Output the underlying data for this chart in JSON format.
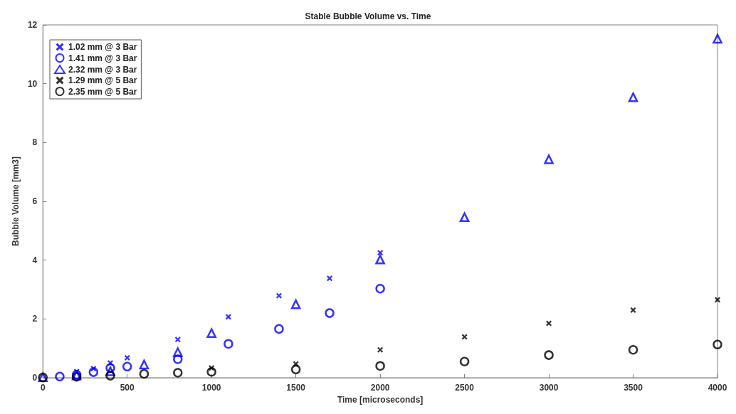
{
  "chart_data": {
    "type": "scatter",
    "title": "Stable Bubble Volume vs. Time",
    "xlabel": "Time [microseconds]",
    "ylabel": "Bubble Volume [mm3]",
    "xlim": [
      0,
      4000
    ],
    "xticks": [
      0,
      500,
      1000,
      1500,
      2000,
      2500,
      3000,
      3500,
      4000
    ],
    "ylim": [
      0,
      12
    ],
    "yticks": [
      0,
      2,
      4,
      6,
      8,
      10,
      12
    ],
    "grid": false,
    "legend": "top left",
    "series": [
      {
        "name": "1.02 mm @ 3 Bar",
        "color": "#0000ff",
        "marker": "cross",
        "x": [
          200,
          300,
          400,
          500,
          800,
          1100,
          1400,
          1700,
          2000
        ],
        "values": [
          0.21,
          0.31,
          0.5,
          0.68,
          1.3,
          2.07,
          2.79,
          3.38,
          4.25
        ]
      },
      {
        "name": "1.41 mm @ 3 Bar",
        "color": "#0000ff",
        "marker": "circle",
        "x": [
          100,
          200,
          300,
          400,
          500,
          800,
          1100,
          1400,
          1700,
          2000
        ],
        "values": [
          0.04,
          0.1,
          0.19,
          0.33,
          0.38,
          0.63,
          1.15,
          1.66,
          2.2,
          3.03
        ]
      },
      {
        "name": "2.32 mm @ 3 Bar",
        "color": "#0000ff",
        "marker": "triangle",
        "x": [
          0,
          200,
          400,
          600,
          800,
          1000,
          1500,
          2000,
          2500,
          3000,
          3500,
          4000
        ],
        "values": [
          0.02,
          0.08,
          0.22,
          0.45,
          0.87,
          1.52,
          2.5,
          4.02,
          5.46,
          7.43,
          9.54,
          11.53
        ]
      },
      {
        "name": "1.29 mm @ 5 Bar",
        "color": "#000000",
        "marker": "cross",
        "x": [
          1000,
          1500,
          2000,
          2500,
          3000,
          3500,
          4000
        ],
        "values": [
          0.33,
          0.47,
          0.95,
          1.39,
          1.85,
          2.3,
          2.65
        ]
      },
      {
        "name": "2.35 mm @ 5 Bar",
        "color": "#000000",
        "marker": "circle",
        "x": [
          0,
          200,
          400,
          600,
          800,
          1000,
          1500,
          2000,
          2500,
          3000,
          3500,
          4000
        ],
        "values": [
          0.01,
          0.03,
          0.07,
          0.13,
          0.17,
          0.2,
          0.28,
          0.4,
          0.55,
          0.77,
          0.95,
          1.13
        ]
      }
    ]
  }
}
